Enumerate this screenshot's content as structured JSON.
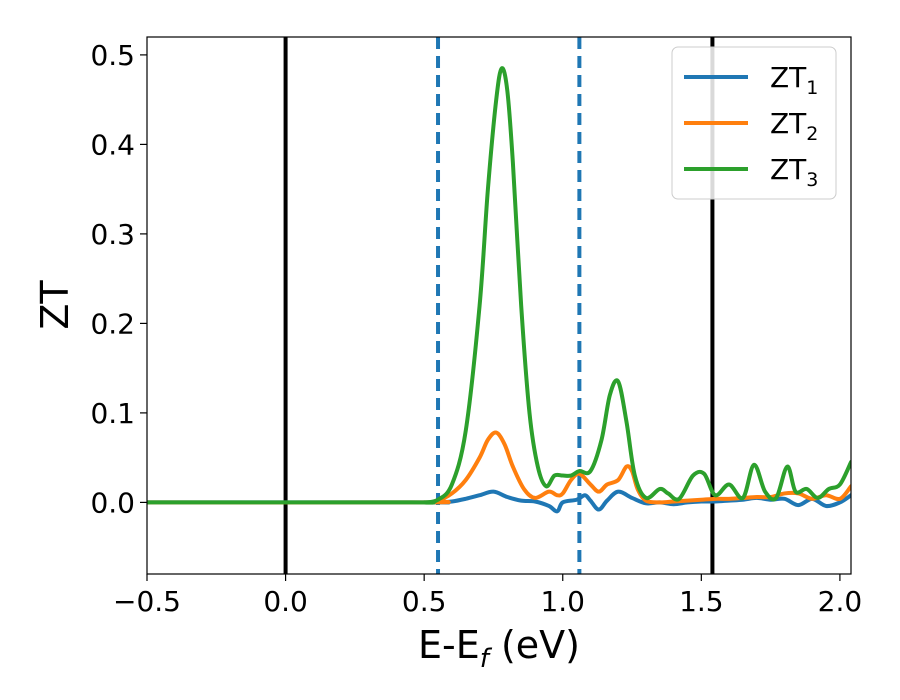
{
  "chart_data": {
    "type": "line",
    "title": "",
    "xlabel_base": "E-E",
    "xlabel_sub": "f",
    "xlabel_unit": " (eV)",
    "ylabel": "ZT",
    "xlim": [
      -0.5,
      2.04
    ],
    "ylim": [
      -0.08,
      0.52
    ],
    "xticks": [
      -0.5,
      0.0,
      0.5,
      1.0,
      1.5,
      2.0
    ],
    "xtick_labels": [
      "−0.5",
      "0.0",
      "0.5",
      "1.0",
      "1.5",
      "2.0"
    ],
    "yticks": [
      0.0,
      0.1,
      0.2,
      0.3,
      0.4,
      0.5
    ],
    "ytick_labels": [
      "0.0",
      "0.1",
      "0.2",
      "0.3",
      "0.4",
      "0.5"
    ],
    "legend_position": "top-right",
    "vlines_solid": [
      0.0,
      1.54
    ],
    "vlines_dashed": [
      0.55,
      1.06
    ],
    "vline_solid_color": "#000000",
    "vline_dashed_color": "#1f77b4",
    "series": [
      {
        "name_base": "ZT",
        "name_sub": "1",
        "color": "#1f77b4",
        "x": [
          -0.5,
          0.5,
          0.55,
          0.6,
          0.65,
          0.7,
          0.75,
          0.8,
          0.85,
          0.9,
          0.95,
          0.98,
          1.0,
          1.05,
          1.08,
          1.1,
          1.13,
          1.16,
          1.2,
          1.25,
          1.3,
          1.35,
          1.4,
          1.45,
          1.5,
          1.55,
          1.6,
          1.65,
          1.7,
          1.75,
          1.8,
          1.85,
          1.9,
          1.95,
          2.0,
          2.04
        ],
        "y": [
          0.0,
          0.0,
          0.0,
          0.001,
          0.004,
          0.008,
          0.012,
          0.006,
          0.002,
          0.001,
          -0.004,
          -0.01,
          0.0,
          0.003,
          0.008,
          0.002,
          -0.008,
          0.002,
          0.012,
          0.005,
          -0.001,
          0.0,
          -0.002,
          0.0,
          0.001,
          0.001,
          0.002,
          0.003,
          0.005,
          0.003,
          0.004,
          -0.003,
          0.004,
          -0.004,
          0.0,
          0.008
        ]
      },
      {
        "name_base": "ZT",
        "name_sub": "2",
        "color": "#ff7f0e",
        "x": [
          -0.5,
          0.5,
          0.55,
          0.6,
          0.65,
          0.7,
          0.73,
          0.76,
          0.79,
          0.82,
          0.86,
          0.9,
          0.95,
          0.98,
          1.0,
          1.03,
          1.06,
          1.1,
          1.13,
          1.16,
          1.2,
          1.23,
          1.25,
          1.27,
          1.3,
          1.35,
          1.4,
          1.45,
          1.5,
          1.55,
          1.6,
          1.65,
          1.7,
          1.75,
          1.8,
          1.85,
          1.9,
          1.95,
          2.0,
          2.04
        ],
        "y": [
          0.0,
          0.0,
          0.002,
          0.01,
          0.025,
          0.05,
          0.07,
          0.078,
          0.065,
          0.04,
          0.015,
          0.005,
          0.012,
          0.008,
          0.01,
          0.025,
          0.032,
          0.02,
          0.012,
          0.02,
          0.025,
          0.04,
          0.035,
          0.015,
          0.002,
          0.0,
          0.001,
          0.002,
          0.003,
          0.004,
          0.004,
          0.005,
          0.006,
          0.006,
          0.01,
          0.01,
          0.004,
          0.008,
          0.004,
          0.018
        ]
      },
      {
        "name_base": "ZT",
        "name_sub": "3",
        "color": "#2ca02c",
        "x": [
          -0.5,
          0.45,
          0.5,
          0.55,
          0.6,
          0.65,
          0.7,
          0.73,
          0.76,
          0.78,
          0.8,
          0.82,
          0.85,
          0.88,
          0.91,
          0.94,
          0.97,
          1.0,
          1.03,
          1.06,
          1.1,
          1.14,
          1.17,
          1.2,
          1.23,
          1.26,
          1.3,
          1.35,
          1.38,
          1.42,
          1.47,
          1.51,
          1.55,
          1.6,
          1.65,
          1.69,
          1.73,
          1.77,
          1.81,
          1.84,
          1.88,
          1.92,
          1.96,
          2.0,
          2.04
        ],
        "y": [
          0.0,
          0.0,
          0.0,
          0.003,
          0.02,
          0.08,
          0.22,
          0.35,
          0.45,
          0.485,
          0.46,
          0.38,
          0.22,
          0.1,
          0.04,
          0.018,
          0.03,
          0.03,
          0.03,
          0.035,
          0.035,
          0.07,
          0.12,
          0.135,
          0.09,
          0.03,
          0.005,
          0.015,
          0.01,
          0.004,
          0.03,
          0.032,
          0.008,
          0.02,
          0.005,
          0.042,
          0.012,
          0.005,
          0.04,
          0.012,
          0.015,
          0.005,
          0.015,
          0.02,
          0.045
        ]
      }
    ]
  }
}
